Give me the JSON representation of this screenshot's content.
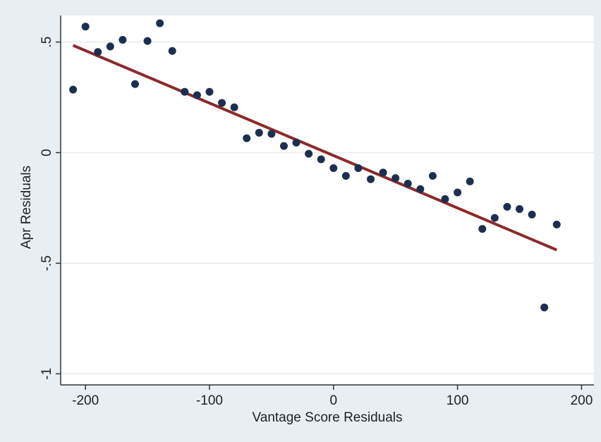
{
  "chart_data": {
    "type": "scatter",
    "title": "",
    "xlabel": "Vantage Score Residuals",
    "ylabel": "Apr Residuals",
    "xlim": [
      -220,
      210
    ],
    "ylim": [
      -1.05,
      0.62
    ],
    "x_ticks": [
      -200,
      -100,
      0,
      100,
      200
    ],
    "x_tick_labels": [
      "-200",
      "-100",
      "0",
      "100",
      "200"
    ],
    "y_ticks": [
      -1,
      -0.5,
      0,
      0.5
    ],
    "y_tick_labels": [
      "-1",
      "-.5",
      "0",
      ".5"
    ],
    "grid": true,
    "colors": {
      "points": "#1c2f4f",
      "fit_line": "#8c2a2a",
      "plot_background": "#ffffff",
      "outer_background": "#e8eef2",
      "grid": "#e6ecef"
    },
    "series": [
      {
        "type": "scatter",
        "points": [
          {
            "x": -210,
            "y": 0.285
          },
          {
            "x": -200,
            "y": 0.57
          },
          {
            "x": -190,
            "y": 0.455
          },
          {
            "x": -180,
            "y": 0.48
          },
          {
            "x": -170,
            "y": 0.51
          },
          {
            "x": -160,
            "y": 0.31
          },
          {
            "x": -150,
            "y": 0.505
          },
          {
            "x": -140,
            "y": 0.585
          },
          {
            "x": -130,
            "y": 0.46
          },
          {
            "x": -120,
            "y": 0.275
          },
          {
            "x": -110,
            "y": 0.26
          },
          {
            "x": -100,
            "y": 0.275
          },
          {
            "x": -90,
            "y": 0.225
          },
          {
            "x": -80,
            "y": 0.205
          },
          {
            "x": -70,
            "y": 0.065
          },
          {
            "x": -60,
            "y": 0.09
          },
          {
            "x": -50,
            "y": 0.085
          },
          {
            "x": -40,
            "y": 0.03
          },
          {
            "x": -30,
            "y": 0.045
          },
          {
            "x": -20,
            "y": -0.005
          },
          {
            "x": -10,
            "y": -0.03
          },
          {
            "x": 0,
            "y": -0.07
          },
          {
            "x": 10,
            "y": -0.105
          },
          {
            "x": 20,
            "y": -0.07
          },
          {
            "x": 30,
            "y": -0.12
          },
          {
            "x": 40,
            "y": -0.09
          },
          {
            "x": 50,
            "y": -0.115
          },
          {
            "x": 60,
            "y": -0.14
          },
          {
            "x": 70,
            "y": -0.165
          },
          {
            "x": 80,
            "y": -0.105
          },
          {
            "x": 90,
            "y": -0.21
          },
          {
            "x": 100,
            "y": -0.18
          },
          {
            "x": 110,
            "y": -0.13
          },
          {
            "x": 120,
            "y": -0.345
          },
          {
            "x": 130,
            "y": -0.295
          },
          {
            "x": 140,
            "y": -0.245
          },
          {
            "x": 150,
            "y": -0.255
          },
          {
            "x": 160,
            "y": -0.28
          },
          {
            "x": 170,
            "y": -0.7
          },
          {
            "x": 180,
            "y": -0.325
          }
        ]
      },
      {
        "type": "line",
        "points": [
          {
            "x": -210,
            "y": 0.485
          },
          {
            "x": 180,
            "y": -0.44
          }
        ]
      }
    ]
  }
}
